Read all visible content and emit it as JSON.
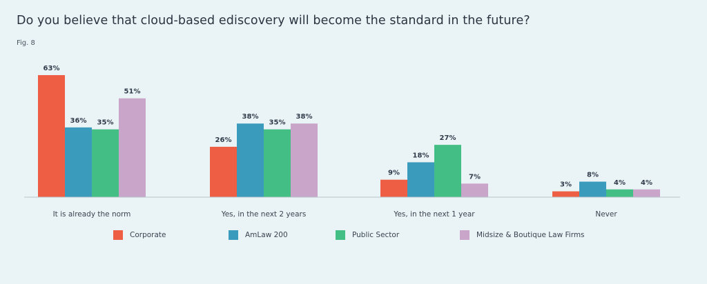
{
  "title": "Do you believe that cloud-based ediscovery will become the standard in the future?",
  "figure_label": "Fig. 8",
  "colors": {
    "Corporate": "#ee5e45",
    "AmLaw 200": "#3a9bbd",
    "Public Sector": "#43be84",
    "Midsize & Boutique Law Firms": "#c9a5c9"
  },
  "chart_data": {
    "type": "bar",
    "title": "Do you believe that cloud-based ediscovery will become the standard in the future?",
    "xlabel": "",
    "ylabel": "",
    "ylim": [
      0,
      70
    ],
    "categories": [
      "It is already the norm",
      "Yes, in the next 2 years",
      "Yes, in the next 1 year",
      "Never"
    ],
    "series": [
      {
        "name": "Corporate",
        "values": [
          63,
          26,
          9,
          3
        ],
        "labels": [
          "63%",
          "26%",
          "9%",
          "3%"
        ]
      },
      {
        "name": "AmLaw 200",
        "values": [
          36,
          38,
          18,
          8
        ],
        "labels": [
          "36%",
          "38%",
          "18%",
          "8%"
        ]
      },
      {
        "name": "Public Sector",
        "values": [
          35,
          35,
          27,
          4
        ],
        "labels": [
          "35%",
          "35%",
          "27%",
          "4%"
        ]
      },
      {
        "name": "Midsize & Boutique Law Firms",
        "values": [
          51,
          38,
          7,
          4
        ],
        "labels": [
          "51%",
          "38%",
          "7%",
          "4%"
        ]
      }
    ],
    "legend": [
      "Corporate",
      "AmLaw 200",
      "Public Sector",
      "Midsize & Boutique Law Firms"
    ],
    "grid": false,
    "legend_position": "bottom"
  }
}
